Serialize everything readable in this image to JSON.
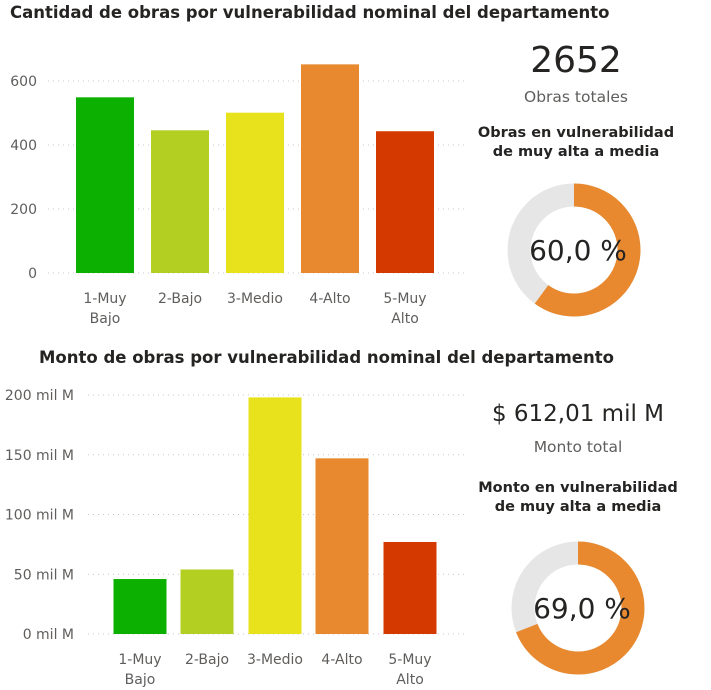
{
  "panel1": {
    "title": "Cantidad de obras por vulnerabilidad nominal del departamento",
    "kpi_value": "2652",
    "kpi_label": "Obras totales",
    "donut_title_line1": "Obras en vulnerabilidad",
    "donut_title_line2": "de muy alta a media",
    "donut_value": "60,0 %",
    "donut_fraction": 0.6
  },
  "panel2": {
    "title": "Monto de obras por vulnerabilidad nominal del departamento",
    "kpi_value": "$ 612,01 mil M",
    "kpi_label": "Monto total",
    "donut_title_line1": "Monto en vulnerabilidad",
    "donut_title_line2": "de muy alta a media",
    "donut_value": "69,0 %",
    "donut_fraction": 0.69
  },
  "colors": {
    "accent": "#e8892f",
    "donut_rest": "#e6e6e6",
    "grid": "#c8c6c4"
  },
  "chart_data": [
    {
      "type": "bar",
      "title": "Cantidad de obras por vulnerabilidad nominal del departamento",
      "categories": [
        "1-Muy Bajo",
        "2-Bajo",
        "3-Medio",
        "4-Alto",
        "5-Muy Alto"
      ],
      "category_lines": [
        [
          "1-Muy",
          "Bajo"
        ],
        [
          "2-Bajo"
        ],
        [
          "3-Medio"
        ],
        [
          "4-Alto"
        ],
        [
          "5-Muy",
          "Alto"
        ]
      ],
      "values": [
        549,
        446,
        501,
        652,
        443
      ],
      "colors": [
        "#0bb000",
        "#b3cf22",
        "#e8e21c",
        "#e8892f",
        "#d43a00"
      ],
      "yticks": [
        0,
        200,
        400,
        600
      ],
      "ytick_labels": [
        "0",
        "200",
        "400",
        "600"
      ],
      "ylim": [
        0,
        720
      ],
      "grid": true,
      "xlabel": "",
      "ylabel": ""
    },
    {
      "type": "bar",
      "title": "Monto de obras por vulnerabilidad nominal del departamento",
      "categories": [
        "1-Muy Bajo",
        "2-Bajo",
        "3-Medio",
        "4-Alto",
        "5-Muy Alto"
      ],
      "category_lines": [
        [
          "1-Muy",
          "Bajo"
        ],
        [
          "2-Bajo"
        ],
        [
          "3-Medio"
        ],
        [
          "4-Alto"
        ],
        [
          "5-Muy",
          "Alto"
        ]
      ],
      "values": [
        46,
        54,
        198,
        147,
        77
      ],
      "colors": [
        "#0bb000",
        "#b3cf22",
        "#e8e21c",
        "#e8892f",
        "#d43a00"
      ],
      "yticks": [
        0,
        50,
        100,
        150,
        200
      ],
      "ytick_labels": [
        "0 mil M",
        "50 mil M",
        "100 mil M",
        "150 mil M",
        "200 mil M"
      ],
      "ylim": [
        0,
        200
      ],
      "grid": true,
      "xlabel": "",
      "ylabel": ""
    }
  ]
}
